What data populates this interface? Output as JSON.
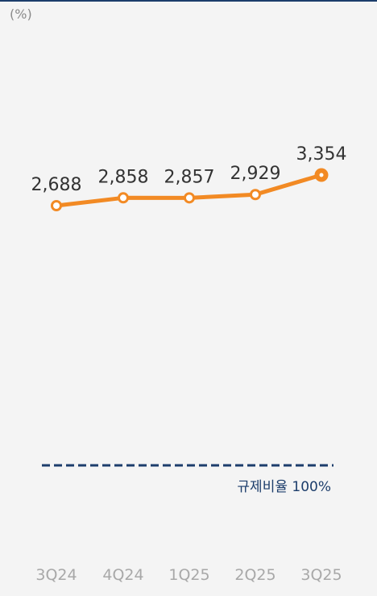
{
  "chart_data": {
    "type": "line",
    "unit_label": "(%)",
    "categories": [
      "3Q24",
      "4Q24",
      "1Q25",
      "2Q25",
      "3Q25"
    ],
    "values": [
      2688,
      2858,
      2857,
      2929,
      3354
    ],
    "value_labels": [
      "2,688",
      "2,858",
      "2,857",
      "2,929",
      "3,354"
    ],
    "reference_line": {
      "value": 100,
      "label": "규제비율 100%"
    },
    "series_color": "#f28a24",
    "reference_color": "#1c3d6b",
    "grid": false,
    "legend": "none"
  }
}
